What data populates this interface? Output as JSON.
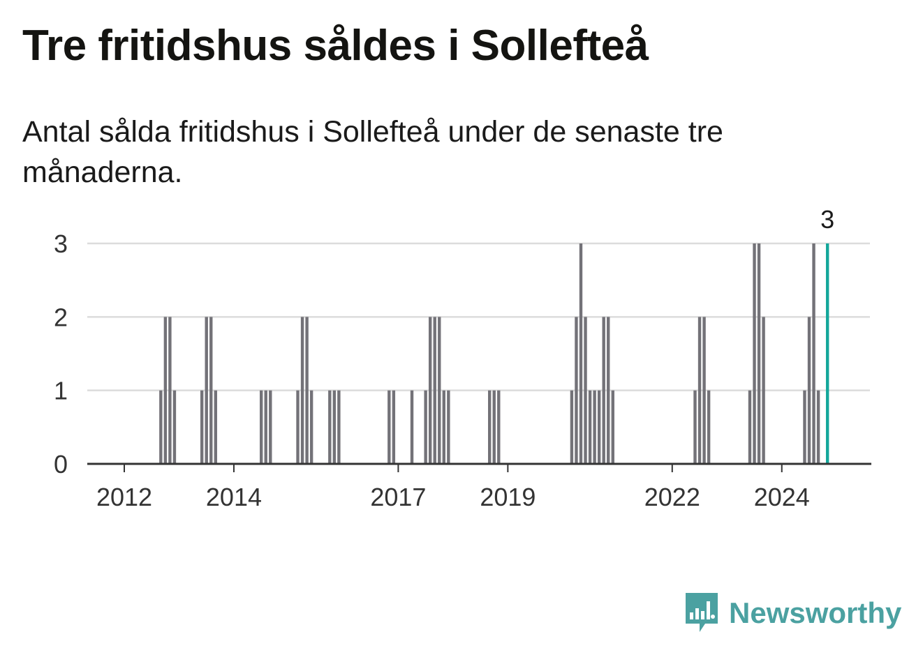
{
  "title": "Tre fritidshus såldes i Sollefteå",
  "subtitle": "Antal sålda fritidshus i Sollefteå under de senaste tre månaderna.",
  "brand": {
    "name": "Newsworthy",
    "icon": "newsworthy-logo-icon"
  },
  "colors": {
    "bar": "#737278",
    "highlight": "#14a79b",
    "grid": "#dcdcdc",
    "axis": "#333333",
    "brand": "#4ba1a1"
  },
  "chart_data": {
    "type": "bar",
    "title": "",
    "xlabel": "",
    "ylabel": "",
    "ylim": [
      0,
      3
    ],
    "yticks": [
      0,
      1,
      2,
      3
    ],
    "xticks": [
      "2012",
      "2014",
      "2017",
      "2019",
      "2022",
      "2024"
    ],
    "grid": true,
    "highlight_label": "3",
    "series": [
      {
        "values": [
          {
            "x": "2012-09",
            "y": 1
          },
          {
            "x": "2012-10",
            "y": 2
          },
          {
            "x": "2012-11",
            "y": 2
          },
          {
            "x": "2012-12",
            "y": 1
          },
          {
            "x": "2013-06",
            "y": 1
          },
          {
            "x": "2013-07",
            "y": 2
          },
          {
            "x": "2013-08",
            "y": 2
          },
          {
            "x": "2013-09",
            "y": 1
          },
          {
            "x": "2014-07",
            "y": 1
          },
          {
            "x": "2014-08",
            "y": 1
          },
          {
            "x": "2014-09",
            "y": 1
          },
          {
            "x": "2015-03",
            "y": 1
          },
          {
            "x": "2015-04",
            "y": 2
          },
          {
            "x": "2015-05",
            "y": 2
          },
          {
            "x": "2015-06",
            "y": 1
          },
          {
            "x": "2015-10",
            "y": 1
          },
          {
            "x": "2015-11",
            "y": 1
          },
          {
            "x": "2015-12",
            "y": 1
          },
          {
            "x": "2016-11",
            "y": 1
          },
          {
            "x": "2016-12",
            "y": 1
          },
          {
            "x": "2017-04",
            "y": 1
          },
          {
            "x": "2017-07",
            "y": 1
          },
          {
            "x": "2017-08",
            "y": 2
          },
          {
            "x": "2017-09",
            "y": 2
          },
          {
            "x": "2017-10",
            "y": 2
          },
          {
            "x": "2017-11",
            "y": 1
          },
          {
            "x": "2017-12",
            "y": 1
          },
          {
            "x": "2018-09",
            "y": 1
          },
          {
            "x": "2018-10",
            "y": 1
          },
          {
            "x": "2018-11",
            "y": 1
          },
          {
            "x": "2020-03",
            "y": 1
          },
          {
            "x": "2020-04",
            "y": 2
          },
          {
            "x": "2020-05",
            "y": 3
          },
          {
            "x": "2020-06",
            "y": 2
          },
          {
            "x": "2020-07",
            "y": 1
          },
          {
            "x": "2020-08",
            "y": 1
          },
          {
            "x": "2020-09",
            "y": 1
          },
          {
            "x": "2020-10",
            "y": 2
          },
          {
            "x": "2020-11",
            "y": 2
          },
          {
            "x": "2020-12",
            "y": 1
          },
          {
            "x": "2022-06",
            "y": 1
          },
          {
            "x": "2022-07",
            "y": 2
          },
          {
            "x": "2022-08",
            "y": 2
          },
          {
            "x": "2022-09",
            "y": 1
          },
          {
            "x": "2023-06",
            "y": 1
          },
          {
            "x": "2023-07",
            "y": 3
          },
          {
            "x": "2023-08",
            "y": 3
          },
          {
            "x": "2023-09",
            "y": 2
          },
          {
            "x": "2024-06",
            "y": 1
          },
          {
            "x": "2024-07",
            "y": 2
          },
          {
            "x": "2024-08",
            "y": 3
          },
          {
            "x": "2024-09",
            "y": 1
          },
          {
            "x": "2024-11",
            "y": 3,
            "highlight": true
          }
        ]
      }
    ]
  }
}
